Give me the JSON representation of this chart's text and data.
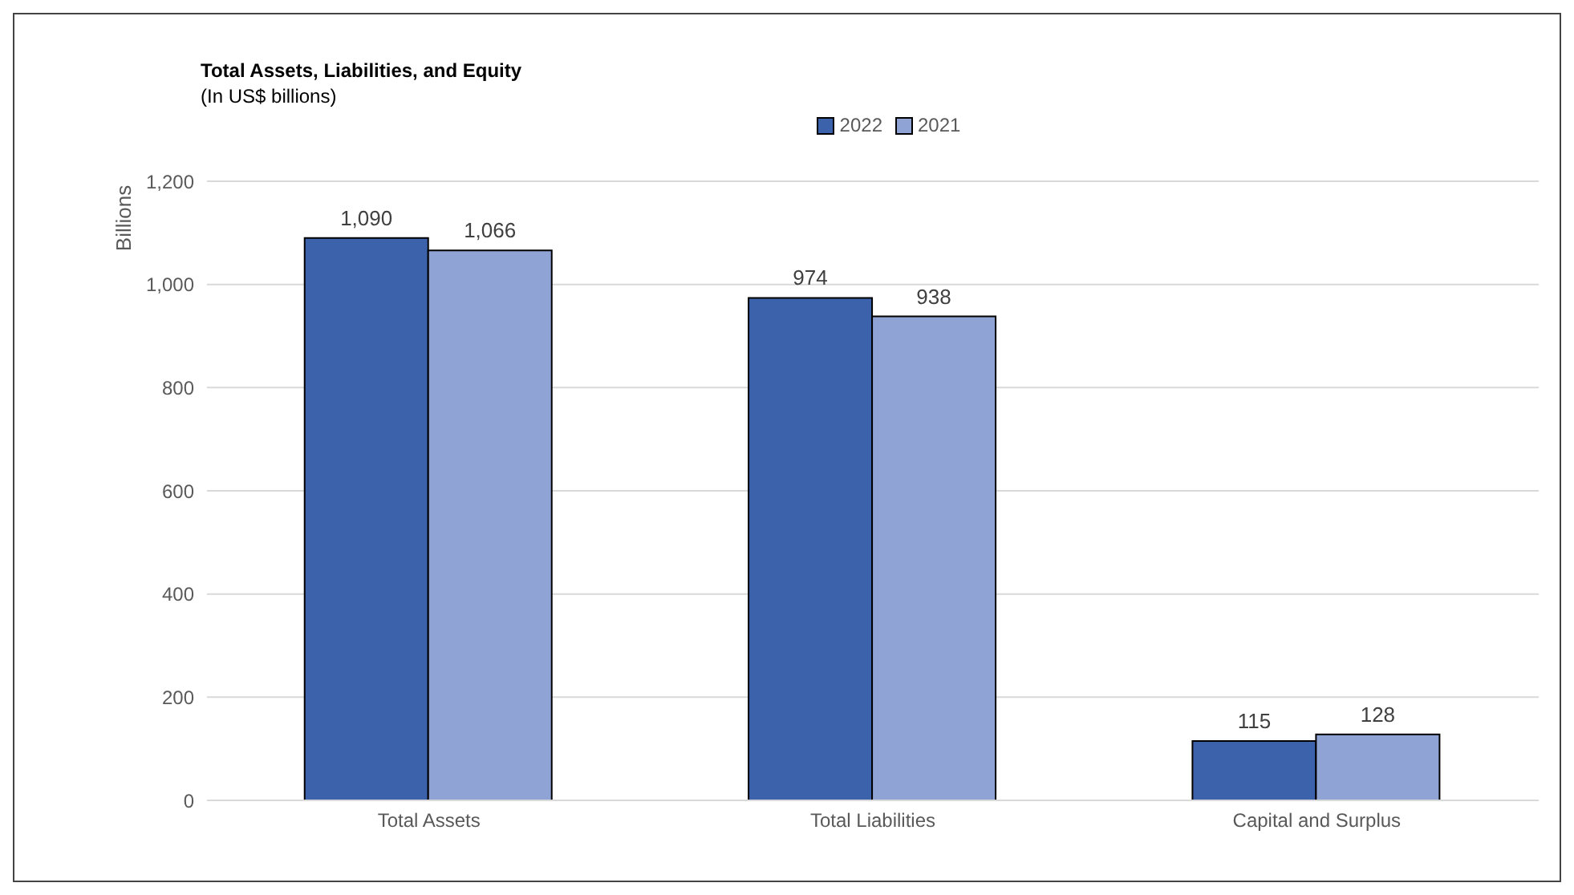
{
  "chart_data": {
    "type": "bar",
    "title": "Total Assets, Liabilities, and Equity",
    "subtitle": "(In US$ billions)",
    "ylabel": "Billions",
    "categories": [
      "Total Assets",
      "Total Liabilities",
      "Capital and Surplus"
    ],
    "series": [
      {
        "name": "2022",
        "color": "#3b62aa",
        "values": [
          1090,
          974,
          115
        ],
        "value_labels": [
          "1,090",
          "974",
          "115"
        ]
      },
      {
        "name": "2021",
        "color": "#8fa3d5",
        "values": [
          1066,
          938,
          128
        ],
        "value_labels": [
          "1,066",
          "938",
          "128"
        ]
      }
    ],
    "ylim": [
      0,
      1200
    ],
    "yticks": [
      {
        "value": 0,
        "label": "0"
      },
      {
        "value": 200,
        "label": "200"
      },
      {
        "value": 400,
        "label": "400"
      },
      {
        "value": 600,
        "label": "600"
      },
      {
        "value": 800,
        "label": "800"
      },
      {
        "value": 1000,
        "label": "1,000"
      },
      {
        "value": 1200,
        "label": "1,200"
      }
    ],
    "grid": "y",
    "legend": "top"
  }
}
